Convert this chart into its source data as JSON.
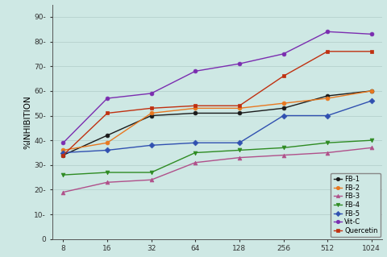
{
  "x": [
    8,
    16,
    32,
    64,
    128,
    256,
    512,
    1024
  ],
  "series": {
    "FB-1": [
      34,
      42,
      50,
      51,
      51,
      53,
      58,
      60
    ],
    "FB-2": [
      36,
      39,
      51,
      53,
      53,
      55,
      57,
      60
    ],
    "FB-3": [
      19,
      23,
      24,
      31,
      33,
      34,
      35,
      37
    ],
    "FB-4": [
      26,
      27,
      27,
      35,
      36,
      37,
      39,
      40
    ],
    "FB-5": [
      35,
      36,
      38,
      39,
      39,
      50,
      50,
      56
    ],
    "Vit-C": [
      39,
      57,
      59,
      68,
      71,
      75,
      84,
      83
    ],
    "Quercetin": [
      34,
      51,
      53,
      54,
      54,
      66,
      76,
      76
    ]
  },
  "colors": {
    "FB-1": "#1a1a1a",
    "FB-2": "#e87820",
    "FB-3": "#b0508a",
    "FB-4": "#2e8b22",
    "FB-5": "#3050b0",
    "Vit-C": "#7b2db0",
    "Quercetin": "#c03010"
  },
  "markers": {
    "FB-1": "o",
    "FB-2": "o",
    "FB-3": "^",
    "FB-4": "v",
    "FB-5": "D",
    "Vit-C": "o",
    "Quercetin": "s"
  },
  "ylabel": "%INHIBITION",
  "ylim": [
    0,
    95
  ],
  "yticks": [
    0,
    10,
    20,
    30,
    40,
    50,
    60,
    70,
    80,
    90
  ],
  "background_color": "#cee8e4",
  "title": ""
}
